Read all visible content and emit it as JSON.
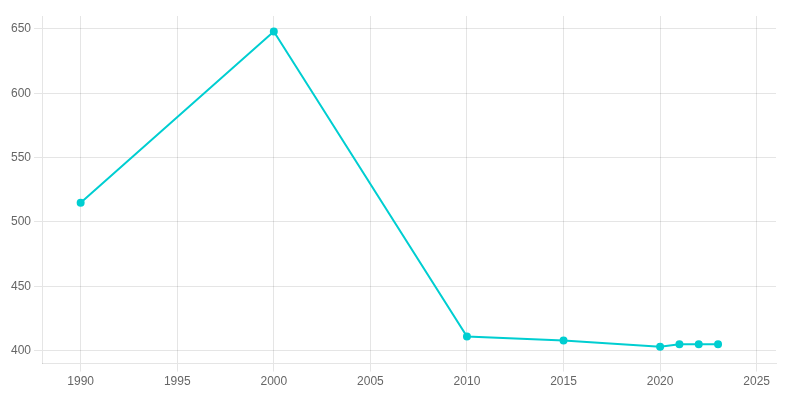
{
  "chart_data": {
    "type": "line",
    "x": [
      1990,
      2000,
      2010,
      2015,
      2020,
      2021,
      2022,
      2023
    ],
    "values": [
      515,
      648,
      411,
      408,
      403,
      405,
      405,
      405
    ],
    "color": "#00CED1",
    "marker": "circle",
    "xlim": [
      1988,
      2026
    ],
    "xticks": [
      1990,
      1995,
      2000,
      2005,
      2010,
      2015,
      2020,
      2025
    ],
    "ylim": [
      390,
      660
    ],
    "yticks": [
      400,
      450,
      500,
      550,
      600,
      650
    ],
    "grid": true
  }
}
